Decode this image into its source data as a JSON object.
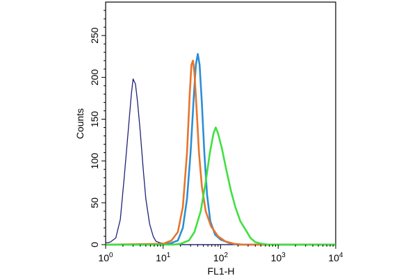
{
  "chart_data": {
    "type": "line",
    "title": "",
    "xlabel": "FL1-H",
    "ylabel": "Counts",
    "x_scale": "log",
    "xlim": [
      1,
      10000
    ],
    "ylim": [
      0,
      290
    ],
    "x_ticks": [
      {
        "base": "10",
        "exp": "0",
        "value": 1
      },
      {
        "base": "10",
        "exp": "1",
        "value": 10
      },
      {
        "base": "10",
        "exp": "2",
        "value": 100
      },
      {
        "base": "10",
        "exp": "3",
        "value": 1000
      },
      {
        "base": "10",
        "exp": "4",
        "value": 10000
      }
    ],
    "y_ticks": [
      {
        "label": "0",
        "value": 0
      },
      {
        "label": "50",
        "value": 50
      },
      {
        "label": "100",
        "value": 100
      },
      {
        "label": "150",
        "value": 150
      },
      {
        "label": "200",
        "value": 200
      },
      {
        "label": "250",
        "value": 250
      }
    ],
    "grid": false,
    "legend": "none",
    "series": [
      {
        "color": "#1f1f7a",
        "points": [
          [
            1,
            2
          ],
          [
            1.2,
            3
          ],
          [
            1.5,
            8
          ],
          [
            1.8,
            30
          ],
          [
            2.1,
            80
          ],
          [
            2.5,
            140
          ],
          [
            2.8,
            180
          ],
          [
            3.0,
            198
          ],
          [
            3.3,
            192
          ],
          [
            3.6,
            170
          ],
          [
            4.0,
            135
          ],
          [
            4.5,
            90
          ],
          [
            5.0,
            55
          ],
          [
            5.8,
            25
          ],
          [
            6.7,
            10
          ],
          [
            7.5,
            4
          ],
          [
            9,
            2
          ],
          [
            12,
            1
          ],
          [
            20,
            0
          ],
          [
            10000,
            0
          ]
        ]
      },
      {
        "color": "#2b8fd6",
        "points": [
          [
            1,
            0
          ],
          [
            10,
            0
          ],
          [
            14,
            2
          ],
          [
            18,
            5
          ],
          [
            22,
            20
          ],
          [
            26,
            55
          ],
          [
            30,
            110
          ],
          [
            34,
            175
          ],
          [
            37,
            215
          ],
          [
            40,
            228
          ],
          [
            43,
            215
          ],
          [
            47,
            170
          ],
          [
            52,
            110
          ],
          [
            58,
            60
          ],
          [
            66,
            28
          ],
          [
            80,
            12
          ],
          [
            100,
            6
          ],
          [
            140,
            2
          ],
          [
            200,
            0
          ],
          [
            10000,
            0
          ]
        ]
      },
      {
        "color": "#e8742a",
        "points": [
          [
            1,
            0
          ],
          [
            10,
            1
          ],
          [
            14,
            5
          ],
          [
            18,
            15
          ],
          [
            22,
            45
          ],
          [
            26,
            110
          ],
          [
            29,
            180
          ],
          [
            31,
            215
          ],
          [
            33,
            220
          ],
          [
            35,
            205
          ],
          [
            38,
            165
          ],
          [
            42,
            110
          ],
          [
            47,
            70
          ],
          [
            55,
            40
          ],
          [
            68,
            22
          ],
          [
            90,
            10
          ],
          [
            120,
            4
          ],
          [
            170,
            1
          ],
          [
            250,
            0
          ],
          [
            10000,
            0
          ]
        ]
      },
      {
        "color": "#3fe03f",
        "points": [
          [
            1,
            0
          ],
          [
            15,
            0
          ],
          [
            20,
            1
          ],
          [
            28,
            5
          ],
          [
            35,
            15
          ],
          [
            45,
            40
          ],
          [
            55,
            75
          ],
          [
            65,
            110
          ],
          [
            75,
            133
          ],
          [
            82,
            140
          ],
          [
            90,
            133
          ],
          [
            105,
            115
          ],
          [
            125,
            90
          ],
          [
            150,
            65
          ],
          [
            180,
            45
          ],
          [
            220,
            28
          ],
          [
            270,
            18
          ],
          [
            330,
            8
          ],
          [
            400,
            3
          ],
          [
            520,
            1
          ],
          [
            700,
            0
          ],
          [
            10000,
            0
          ]
        ]
      }
    ]
  }
}
